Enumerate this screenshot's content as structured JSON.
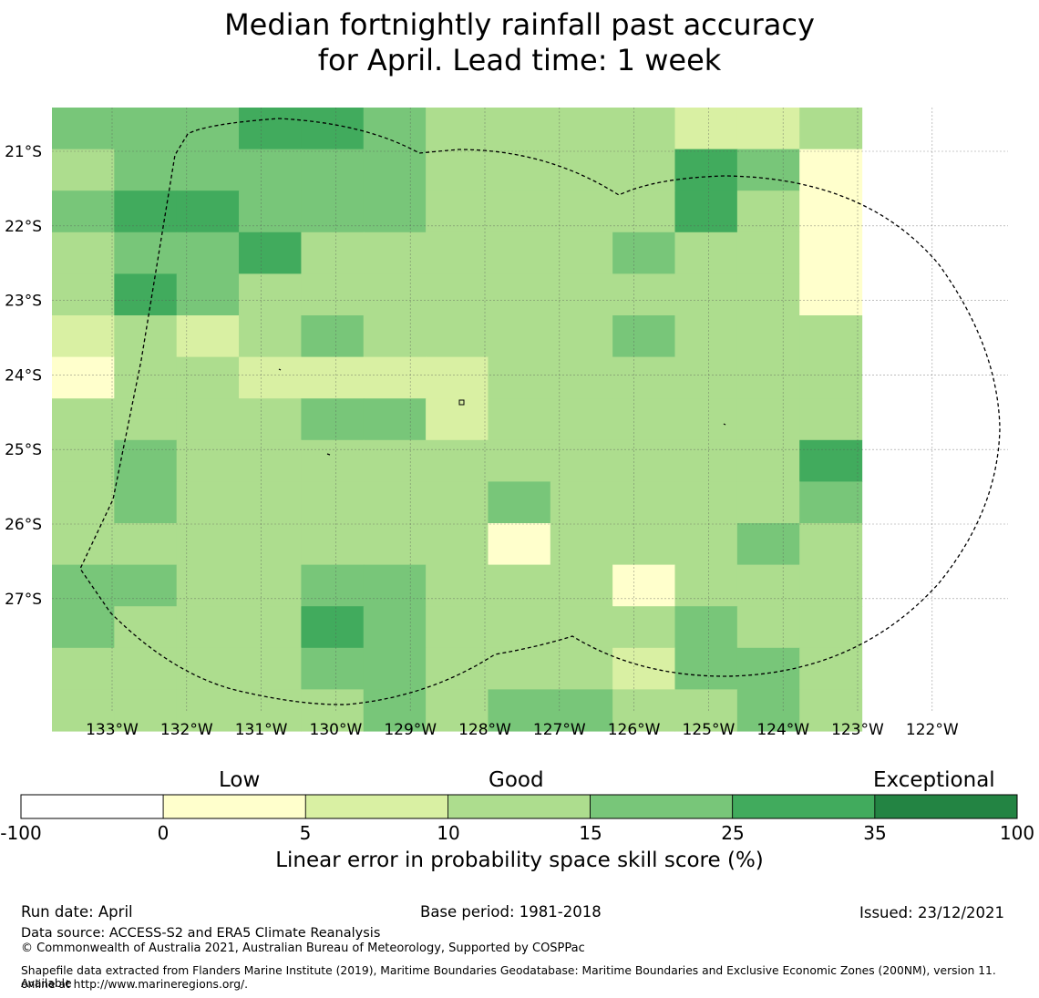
{
  "title": {
    "line1": "Median fortnightly rainfall past accuracy",
    "line2": "for April. Lead time: 1 week"
  },
  "map": {
    "lon_labels": [
      "133°W",
      "132°W",
      "131°W",
      "130°W",
      "129°W",
      "128°W",
      "127°W",
      "126°W",
      "125°W",
      "124°W",
      "123°W",
      "122°W"
    ],
    "lat_labels": [
      "21°S",
      "22°S",
      "23°S",
      "24°S",
      "25°S",
      "26°S",
      "27°S"
    ],
    "grid_rows": [
      "3334432222112",
      "2333332222430",
      "3443332222420",
      "2334222223220",
      "2432222222220",
      "1212322223222",
      "0221111222222",
      "2222331222222",
      "2322222222224",
      "2322222322223",
      "2222222022232",
      "3322332220222",
      "3222432222322",
      "2222332221332",
      "2222232332232"
    ],
    "colors": [
      "#ffffcc",
      "#d9f0a3",
      "#addd8e",
      "#78c679",
      "#41ab5d"
    ]
  },
  "colorbar": {
    "categories": [
      "Low",
      "Good",
      "Exceptional"
    ],
    "ticks": [
      "-100",
      "0",
      "5",
      "10",
      "15",
      "25",
      "35",
      "100"
    ],
    "colors": [
      "#ffffff",
      "#ffffcc",
      "#d9f0a3",
      "#addd8e",
      "#78c679",
      "#41ab5d",
      "#238443"
    ],
    "label": "Linear error in probability space skill score (%)"
  },
  "footer": {
    "run_date": "Run date: April",
    "base_period": "Base period: 1981-2018",
    "issued": "Issued: 23/12/2021",
    "data_source": "Data source: ACCESS-S2 and ERA5 Climate Reanalysis",
    "copyright": "© Commonwealth of Australia 2021, Australian Bureau of Meteorology, Supported by COSPPac",
    "shapefile_line1": "Shapefile data extracted from Flanders Marine Institute (2019), Maritime Boundaries Geodatabase: Maritime Boundaries and Exclusive Economic Zones (200NM), version 11. Available",
    "shapefile_line2": "online at http://www.marineregions.org/."
  }
}
